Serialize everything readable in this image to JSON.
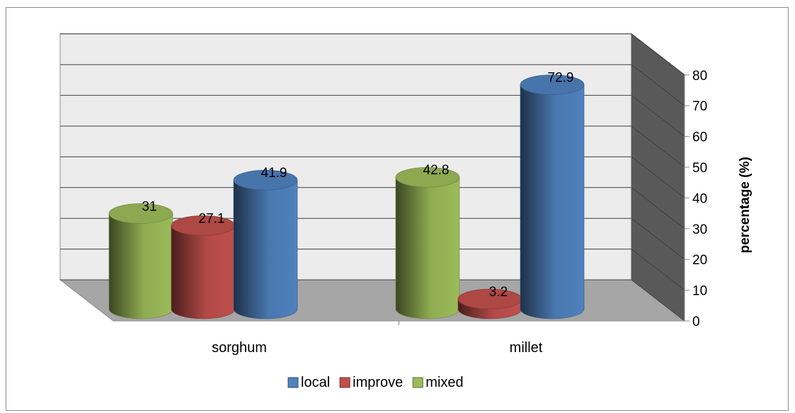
{
  "chart_data": {
    "type": "bar",
    "style": "3d-cylinder",
    "categories": [
      "sorghum",
      "millet"
    ],
    "series": [
      {
        "name": "mixed",
        "color": "#9BBB59",
        "values": [
          31,
          42.8
        ]
      },
      {
        "name": "improve",
        "color": "#C0504D",
        "values": [
          27.1,
          3.2
        ]
      },
      {
        "name": "local",
        "color": "#4F81BD",
        "values": [
          41.9,
          72.9
        ]
      }
    ],
    "legend_order": [
      "local",
      "improve",
      "mixed"
    ],
    "ylabel": "percentage (%)",
    "ylim": [
      0,
      80
    ],
    "yticks": [
      0,
      10,
      20,
      30,
      40,
      50,
      60,
      70,
      80
    ],
    "y_axis_side": "right",
    "grid": true,
    "legend_position": "bottom"
  }
}
